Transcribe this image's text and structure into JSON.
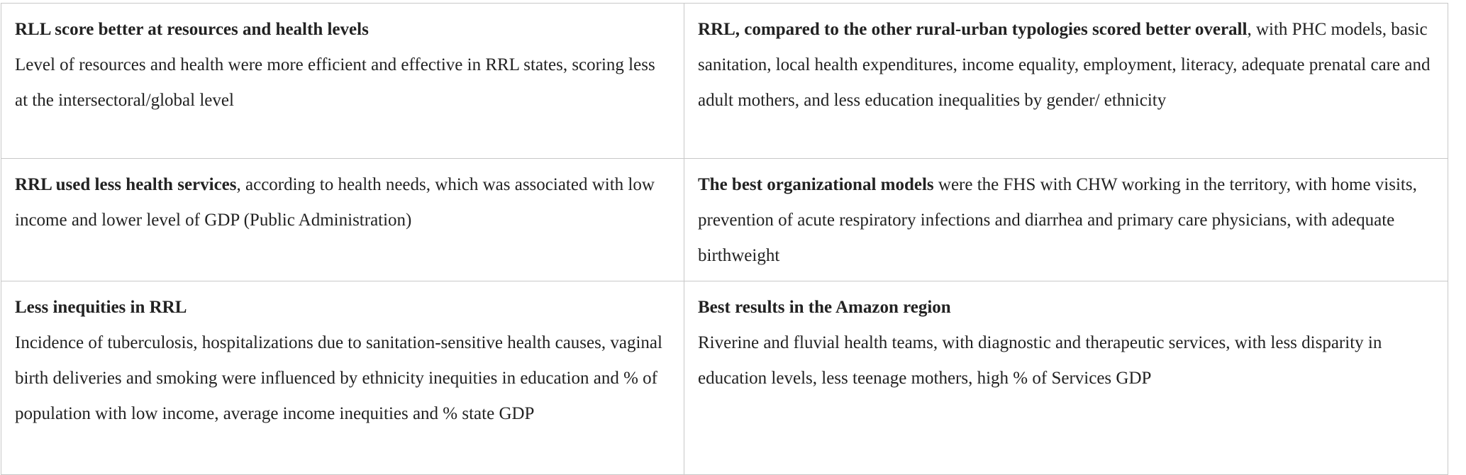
{
  "table": {
    "rows": [
      {
        "left": {
          "heading": "RLL score better at resources and health levels",
          "body": "Level of resources and health were more efficient and effective in RRL states, scoring less at the intersectoral/global level"
        },
        "right": {
          "heading": "RRL, compared to the other rural-urban typologies scored better overall",
          "body": ", with PHC models, basic sanitation, local health expenditures, income equality, employment, literacy, adequate prenatal care and adult mothers, and less education inequalities by gender/ ethnicity"
        }
      },
      {
        "left": {
          "heading": "RRL used less health services",
          "body": ", according to health needs, which was associated with low income and lower level of GDP (Public Administration)"
        },
        "right": {
          "heading": "The best organizational models",
          "body": " were the FHS with CHW working in the territory, with home visits, prevention of acute respiratory infections and diarrhea and primary care physicians, with adequate birthweight"
        }
      },
      {
        "left": {
          "heading": "Less inequities in RRL",
          "body": "Incidence of tuberculosis, hospitalizations due to sanitation-sensitive health causes, vaginal birth deliveries and smoking were influenced by ethnicity inequities in education and % of population with low income, average income inequities and % state GDP"
        },
        "right": {
          "heading": "Best results in the Amazon region",
          "body": "Riverine and fluvial health teams, with diagnostic and therapeutic services, with less disparity in education levels, less teenage mothers, high % of Services GDP"
        }
      }
    ]
  }
}
